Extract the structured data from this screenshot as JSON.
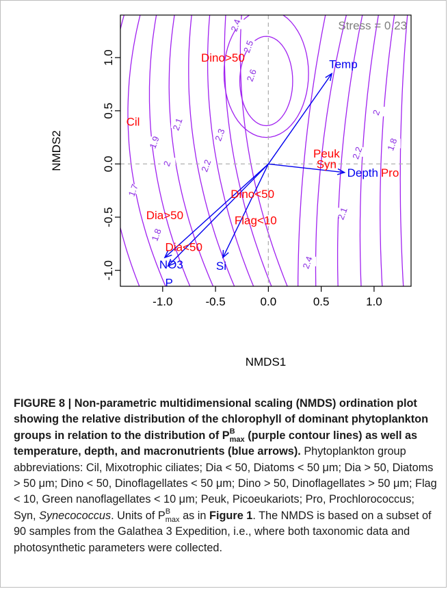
{
  "figure": {
    "label": "FIGURE 8 |",
    "title_bold": "Non-parametric multidimensional scaling (NMDS) ordination plot showing the relative distribution of the chlorophyll of dominant phytoplankton groups in relation to the distribution of P",
    "title_bold_end": "(purple contour lines) as well as temperature, depth, and macronutrients (blue arrows).",
    "pmax_sup": "B",
    "pmax_sub": "max",
    "caption_1": "Phytoplankton group abbreviations: Cil, Mixotrophic ciliates; Dia < 50, Diatoms < 50 μm; Dia > 50, Diatoms > 50 μm; Dino < 50, Dinoflagellates < 50 μm; Dino > 50, Dinoflagellates > 50 μm; Flag < 10, Green nanoflagellates < 10 μm; Peuk, Picoeukariots; Pro, Prochlorococcus; Syn,",
    "caption_syn": "Synecococcus",
    "caption_2": ". Units of P",
    "caption_3": "as in",
    "caption_fig1": "Figure 1",
    "caption_4": ". The NMDS is based on a subset of 90 samples from the Galathea 3 Expedition, i.e., where both taxonomic data and photosynthetic parameters were collected."
  },
  "chart_data": {
    "type": "scatter",
    "title": "",
    "xlabel": "NMDS1",
    "ylabel": "NMDS2",
    "xlim": [
      -1.4,
      1.35
    ],
    "ylim": [
      -1.15,
      1.4
    ],
    "xticks": [
      "-1.0",
      "-0.5",
      "0.0",
      "0.5",
      "1.0"
    ],
    "xtick_values": [
      -1.0,
      -0.5,
      0.0,
      0.5,
      1.0
    ],
    "yticks": [
      "-1.0",
      "-0.5",
      "0.0",
      "0.5",
      "1.0"
    ],
    "ytick_values": [
      -1.0,
      -0.5,
      0.0,
      0.5,
      1.0
    ],
    "stress_label": "Stress = 0.23",
    "reference_lines": [
      0,
      0
    ],
    "colors": {
      "groups": "#ff0000",
      "vectors": "#0000ee",
      "contours": "#a020f0",
      "reference": "#b0b0b0"
    },
    "groups": [
      {
        "label": "Cil",
        "x": -1.28,
        "y": 0.4
      },
      {
        "label": "Dino>50",
        "x": -0.43,
        "y": 1.0
      },
      {
        "label": "Peuk",
        "x": 0.55,
        "y": 0.1
      },
      {
        "label": "Syn",
        "x": 0.55,
        "y": 0.0
      },
      {
        "label": "Pro",
        "x": 1.15,
        "y": -0.08
      },
      {
        "label": "Dino<50",
        "x": -0.15,
        "y": -0.28
      },
      {
        "label": "Dia>50",
        "x": -0.98,
        "y": -0.48
      },
      {
        "label": "Flag<10",
        "x": -0.12,
        "y": -0.53
      },
      {
        "label": "Dia<50",
        "x": -0.8,
        "y": -0.78
      }
    ],
    "vectors": [
      {
        "label": "Temp",
        "x": 0.6,
        "y": 0.85
      },
      {
        "label": "Depth",
        "x": 0.72,
        "y": -0.08
      },
      {
        "label": "NO3",
        "x": -0.98,
        "y": -0.88
      },
      {
        "label": "P",
        "x": -0.95,
        "y": -0.96
      },
      {
        "label": "Si",
        "x": -0.43,
        "y": -0.88
      }
    ],
    "contour_labels": [
      {
        "label": "2.4",
        "x": -0.3,
        "y": 1.3
      },
      {
        "label": "2.5",
        "x": -0.18,
        "y": 1.1
      },
      {
        "label": "2.6",
        "x": -0.15,
        "y": 0.83
      },
      {
        "label": "1.9",
        "x": -1.07,
        "y": 0.2
      },
      {
        "label": "2.1",
        "x": -0.85,
        "y": 0.37
      },
      {
        "label": "2.3",
        "x": -0.45,
        "y": 0.27
      },
      {
        "label": "2",
        "x": -0.95,
        "y": 0.0
      },
      {
        "label": "2.2",
        "x": -0.58,
        "y": -0.02
      },
      {
        "label": "1.7",
        "x": -1.27,
        "y": -0.25
      },
      {
        "label": "1.8",
        "x": -1.05,
        "y": -0.67
      },
      {
        "label": "2.4",
        "x": 0.38,
        "y": -0.93
      },
      {
        "label": "2.1",
        "x": 0.71,
        "y": -0.47
      },
      {
        "label": "2.2",
        "x": 0.85,
        "y": 0.1
      },
      {
        "label": "2",
        "x": 1.03,
        "y": 0.48
      },
      {
        "label": "1.8",
        "x": 1.18,
        "y": 0.18
      }
    ]
  }
}
